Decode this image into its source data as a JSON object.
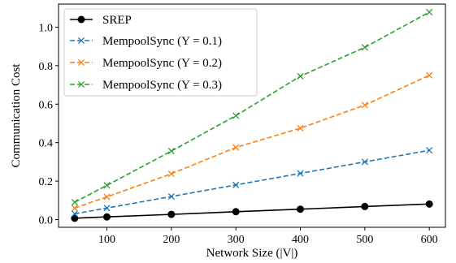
{
  "chart_data": {
    "type": "line",
    "title": "",
    "xlabel": "Network Size (|V|)",
    "ylabel": "Communication Cost",
    "xlim": [
      25,
      625
    ],
    "ylim": [
      -0.04,
      1.12
    ],
    "xticks": [
      100,
      200,
      300,
      400,
      500,
      600
    ],
    "yticks": [
      0.0,
      0.2,
      0.4,
      0.6,
      0.8,
      1.0
    ],
    "ytick_labels": [
      "0.0",
      "0.2",
      "0.4",
      "0.6",
      "0.8",
      "1.0"
    ],
    "grid": false,
    "legend_position": "top-left",
    "x": [
      50,
      100,
      200,
      300,
      400,
      500,
      600
    ],
    "series": [
      {
        "name": "SREP",
        "color": "#000000",
        "line_style": "solid",
        "marker": "circle",
        "values": [
          0.007,
          0.014,
          0.027,
          0.041,
          0.054,
          0.068,
          0.081
        ]
      },
      {
        "name": "MempoolSync (Y = 0.1)",
        "color": "#1f77b4",
        "line_style": "dashed",
        "marker": "x",
        "values": [
          0.03,
          0.06,
          0.12,
          0.18,
          0.24,
          0.3,
          0.36
        ]
      },
      {
        "name": "MempoolSync (Y = 0.2)",
        "color": "#ff7f0e",
        "line_style": "dashed",
        "marker": "x",
        "values": [
          0.06,
          0.118,
          0.238,
          0.375,
          0.475,
          0.595,
          0.75
        ]
      },
      {
        "name": "MempoolSync (Y = 0.3)",
        "color": "#2ca02c",
        "line_style": "dashed",
        "marker": "x",
        "values": [
          0.09,
          0.178,
          0.356,
          0.54,
          0.745,
          0.895,
          1.078
        ]
      }
    ]
  }
}
